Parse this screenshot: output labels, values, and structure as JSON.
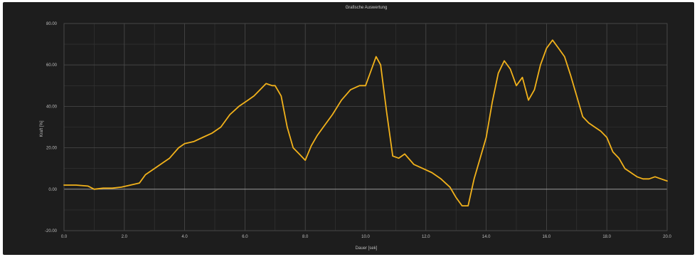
{
  "chart_data": {
    "type": "line",
    "title": "Grafische Auswertung",
    "xlabel": "Dauer [sek]",
    "ylabel": "Kraft [%]",
    "xlim": [
      0,
      20
    ],
    "ylim": [
      -20,
      80
    ],
    "x_ticks": [
      "0.0",
      "2.0",
      "4.0",
      "6.0",
      "8.0",
      "10.0",
      "12.0",
      "14.0",
      "16.0",
      "18.0",
      "20.0"
    ],
    "y_ticks": [
      "-20.00",
      "0.00",
      "20.00",
      "40.00",
      "60.00",
      "80.00"
    ],
    "grid": true,
    "colors": {
      "background": "#1d1d1d",
      "grid": "#4a4a4a",
      "grid_minor": "#363636",
      "zero_line": "#9a9a9a",
      "series": "#f2b21b"
    },
    "series": [
      {
        "x": [
          0.0,
          0.4,
          0.8,
          1.0,
          1.3,
          1.6,
          1.9,
          2.2,
          2.5,
          2.7,
          3.0,
          3.3,
          3.5,
          3.8,
          4.0,
          4.3,
          4.6,
          4.9,
          5.2,
          5.5,
          5.8,
          6.1,
          6.3,
          6.5,
          6.7,
          6.9,
          7.0,
          7.2,
          7.4,
          7.6,
          7.8,
          8.0,
          8.2,
          8.4,
          8.6,
          8.9,
          9.2,
          9.5,
          9.8,
          10.0,
          10.2,
          10.35,
          10.5,
          10.7,
          10.9,
          11.1,
          11.3,
          11.6,
          11.9,
          12.2,
          12.5,
          12.8,
          13.0,
          13.2,
          13.4,
          13.6,
          13.8,
          14.0,
          14.2,
          14.4,
          14.6,
          14.8,
          15.0,
          15.2,
          15.4,
          15.6,
          15.8,
          16.0,
          16.2,
          16.4,
          16.6,
          16.8,
          17.0,
          17.2,
          17.4,
          17.6,
          17.8,
          18.0,
          18.2,
          18.4,
          18.6,
          18.8,
          19.0,
          19.2,
          19.4,
          19.6,
          19.8,
          20.0
        ],
        "y": [
          2,
          2,
          1.5,
          0,
          0.5,
          0.5,
          1,
          2,
          3,
          7,
          10,
          13,
          15,
          20,
          22,
          23,
          25,
          27,
          30,
          36,
          40,
          43,
          45,
          48,
          51,
          50,
          50,
          45,
          30,
          20,
          17,
          14,
          21,
          26,
          30,
          36,
          43,
          48,
          50,
          50,
          58,
          64,
          60,
          37,
          16,
          15,
          17,
          12,
          10,
          8,
          5,
          1,
          -4,
          -8,
          -8,
          5,
          15,
          25,
          42,
          56,
          62,
          58,
          50,
          54,
          43,
          48,
          60,
          68,
          72,
          68,
          64,
          55,
          45,
          35,
          32,
          30,
          28,
          25,
          18,
          15,
          10,
          8,
          6,
          5,
          5,
          6,
          5,
          4
        ]
      }
    ]
  }
}
